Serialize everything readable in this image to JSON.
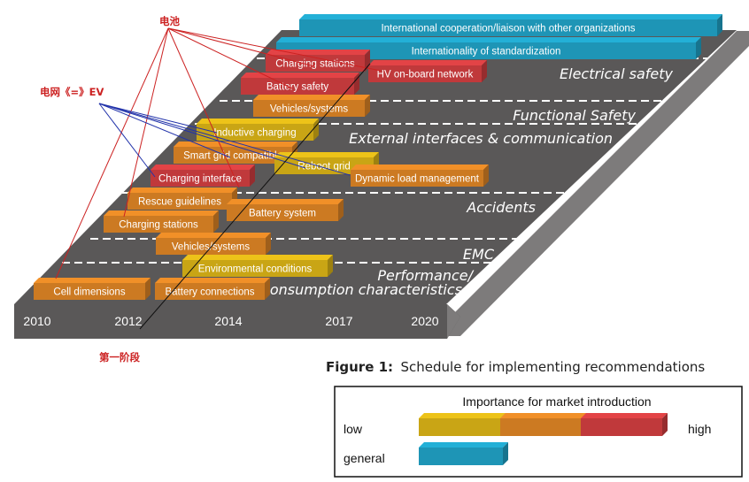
{
  "colors": {
    "low": "#c9a515",
    "mid": "#cc7a22",
    "high": "#c0393b",
    "general": "#1e95b6",
    "platform": "#5a5858",
    "platform_side": "#7d7b7b",
    "annot_red": "#cc2222",
    "annot_blue": "#2233aa"
  },
  "years": [
    "2010",
    "2012",
    "2014",
    "2017",
    "2020"
  ],
  "categories": [
    "Electrical safety",
    "Functional Safety",
    "External interfaces & communication",
    "Accidents",
    "EMC",
    "Performance/",
    "Consumption characteristics"
  ],
  "bars": [
    {
      "label": "International cooperation/liaison with other organizations",
      "importance": "general"
    },
    {
      "label": "Internationality of standardization",
      "importance": "general"
    },
    {
      "label": "Charging stations",
      "importance": "high"
    },
    {
      "label": "HV on-board network",
      "importance": "high"
    },
    {
      "label": "Battery safety",
      "importance": "high"
    },
    {
      "label": "Vehicles/systems",
      "importance": "mid"
    },
    {
      "label": "Inductive charging",
      "importance": "low"
    },
    {
      "label": "Smart grid compatible",
      "importance": "mid"
    },
    {
      "label": "Reboot grid",
      "importance": "low"
    },
    {
      "label": "Dynamic load management",
      "importance": "mid"
    },
    {
      "label": "Charging interface",
      "importance": "high"
    },
    {
      "label": "Rescue guidelines",
      "importance": "mid"
    },
    {
      "label": "Battery system",
      "importance": "mid"
    },
    {
      "label": "Charging stations",
      "importance": "mid"
    },
    {
      "label": "Vehicles/systems",
      "importance": "mid"
    },
    {
      "label": "Environmental conditions",
      "importance": "low"
    },
    {
      "label": "Cell dimensions",
      "importance": "mid"
    },
    {
      "label": "Battery connections",
      "importance": "mid"
    }
  ],
  "annotations": {
    "battery": "电池",
    "grid_ev": "电网《=》EV",
    "phase_one": "第一阶段"
  },
  "figure": {
    "number": "Figure 1:",
    "caption": "Schedule for implementing recommendations"
  },
  "legend": {
    "title": "Importance for market introduction",
    "low": "low",
    "high": "high",
    "general": "general"
  }
}
